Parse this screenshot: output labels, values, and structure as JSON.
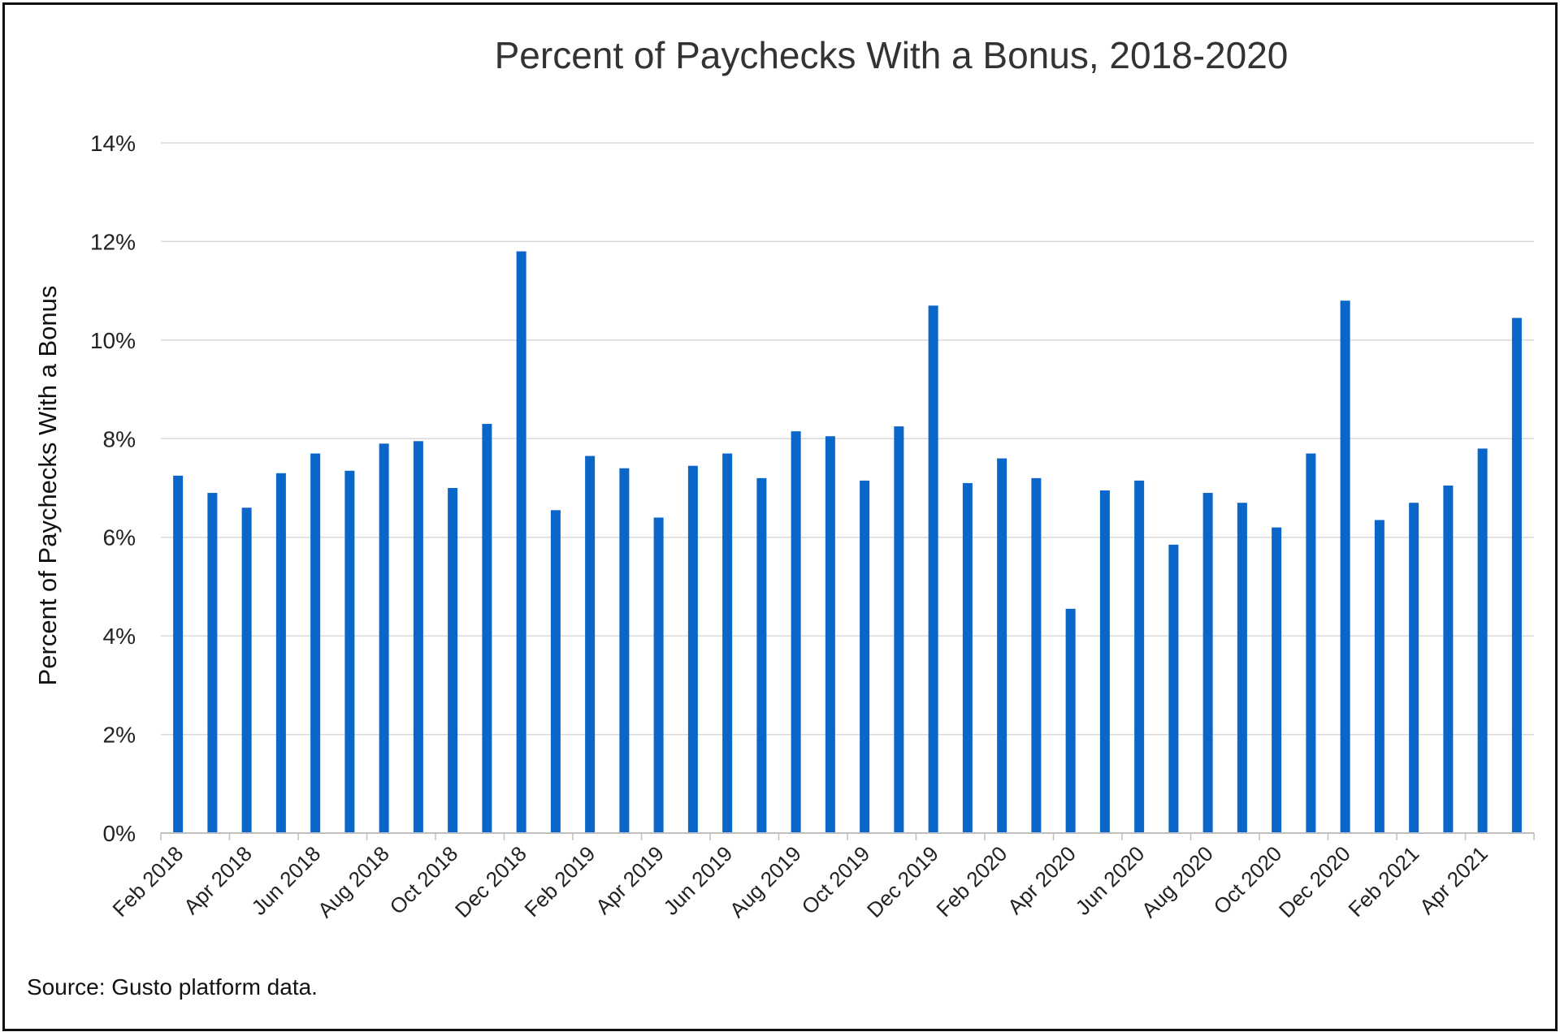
{
  "source_note": "Source: Gusto platform data.",
  "colors": {
    "bar": "#0a66c8",
    "grid": "#d9d9d9",
    "axis": "#bfbfbf",
    "frame": "#111111"
  },
  "chart_data": {
    "type": "bar",
    "title": "Percent of Paychecks With a Bonus, 2018-2020",
    "xlabel": "",
    "ylabel": "Percent of Paychecks With a Bonus",
    "ylim": [
      0,
      14
    ],
    "y_ticks": [
      0,
      2,
      4,
      6,
      8,
      10,
      12,
      14
    ],
    "y_tick_labels": [
      "0%",
      "2%",
      "4%",
      "6%",
      "8%",
      "10%",
      "12%",
      "14%"
    ],
    "grid": true,
    "legend": "none",
    "categories": [
      "Feb 2018",
      "Mar 2018",
      "Apr 2018",
      "May 2018",
      "Jun 2018",
      "Jul 2018",
      "Aug 2018",
      "Sep 2018",
      "Oct 2018",
      "Nov 2018",
      "Dec 2018",
      "Jan 2019",
      "Feb 2019",
      "Mar 2019",
      "Apr 2019",
      "May 2019",
      "Jun 2019",
      "Jul 2019",
      "Aug 2019",
      "Sep 2019",
      "Oct 2019",
      "Nov 2019",
      "Dec 2019",
      "Jan 2020",
      "Feb 2020",
      "Mar 2020",
      "Apr 2020",
      "May 2020",
      "Jun 2020",
      "Jul 2020",
      "Aug 2020",
      "Sep 2020",
      "Oct 2020",
      "Nov 2020",
      "Dec 2020",
      "Jan 2021",
      "Feb 2021",
      "Mar 2021",
      "Apr 2021",
      "May 2021"
    ],
    "x_tick_labels_shown": [
      "Feb 2018",
      "Apr 2018",
      "Jun 2018",
      "Aug 2018",
      "Oct 2018",
      "Dec 2018",
      "Feb 2019",
      "Apr 2019",
      "Jun 2019",
      "Aug 2019",
      "Oct 2019",
      "Dec 2019",
      "Feb 2020",
      "Apr 2020",
      "Jun 2020",
      "Aug 2020",
      "Oct 2020",
      "Dec 2020",
      "Feb 2021",
      "Apr 2021"
    ],
    "series": [
      {
        "values": [
          7.25,
          6.9,
          6.6,
          7.3,
          7.7,
          7.35,
          7.9,
          7.95,
          7.0,
          8.3,
          11.8,
          6.55,
          7.65,
          7.4,
          6.4,
          7.45,
          7.7,
          7.2,
          8.15,
          8.05,
          7.15,
          8.25,
          10.7,
          7.1,
          7.6,
          7.2,
          4.55,
          6.95,
          7.15,
          5.85,
          6.9,
          6.7,
          6.2,
          7.7,
          10.8,
          6.35,
          6.7,
          7.05,
          7.8,
          10.45
        ]
      }
    ]
  }
}
